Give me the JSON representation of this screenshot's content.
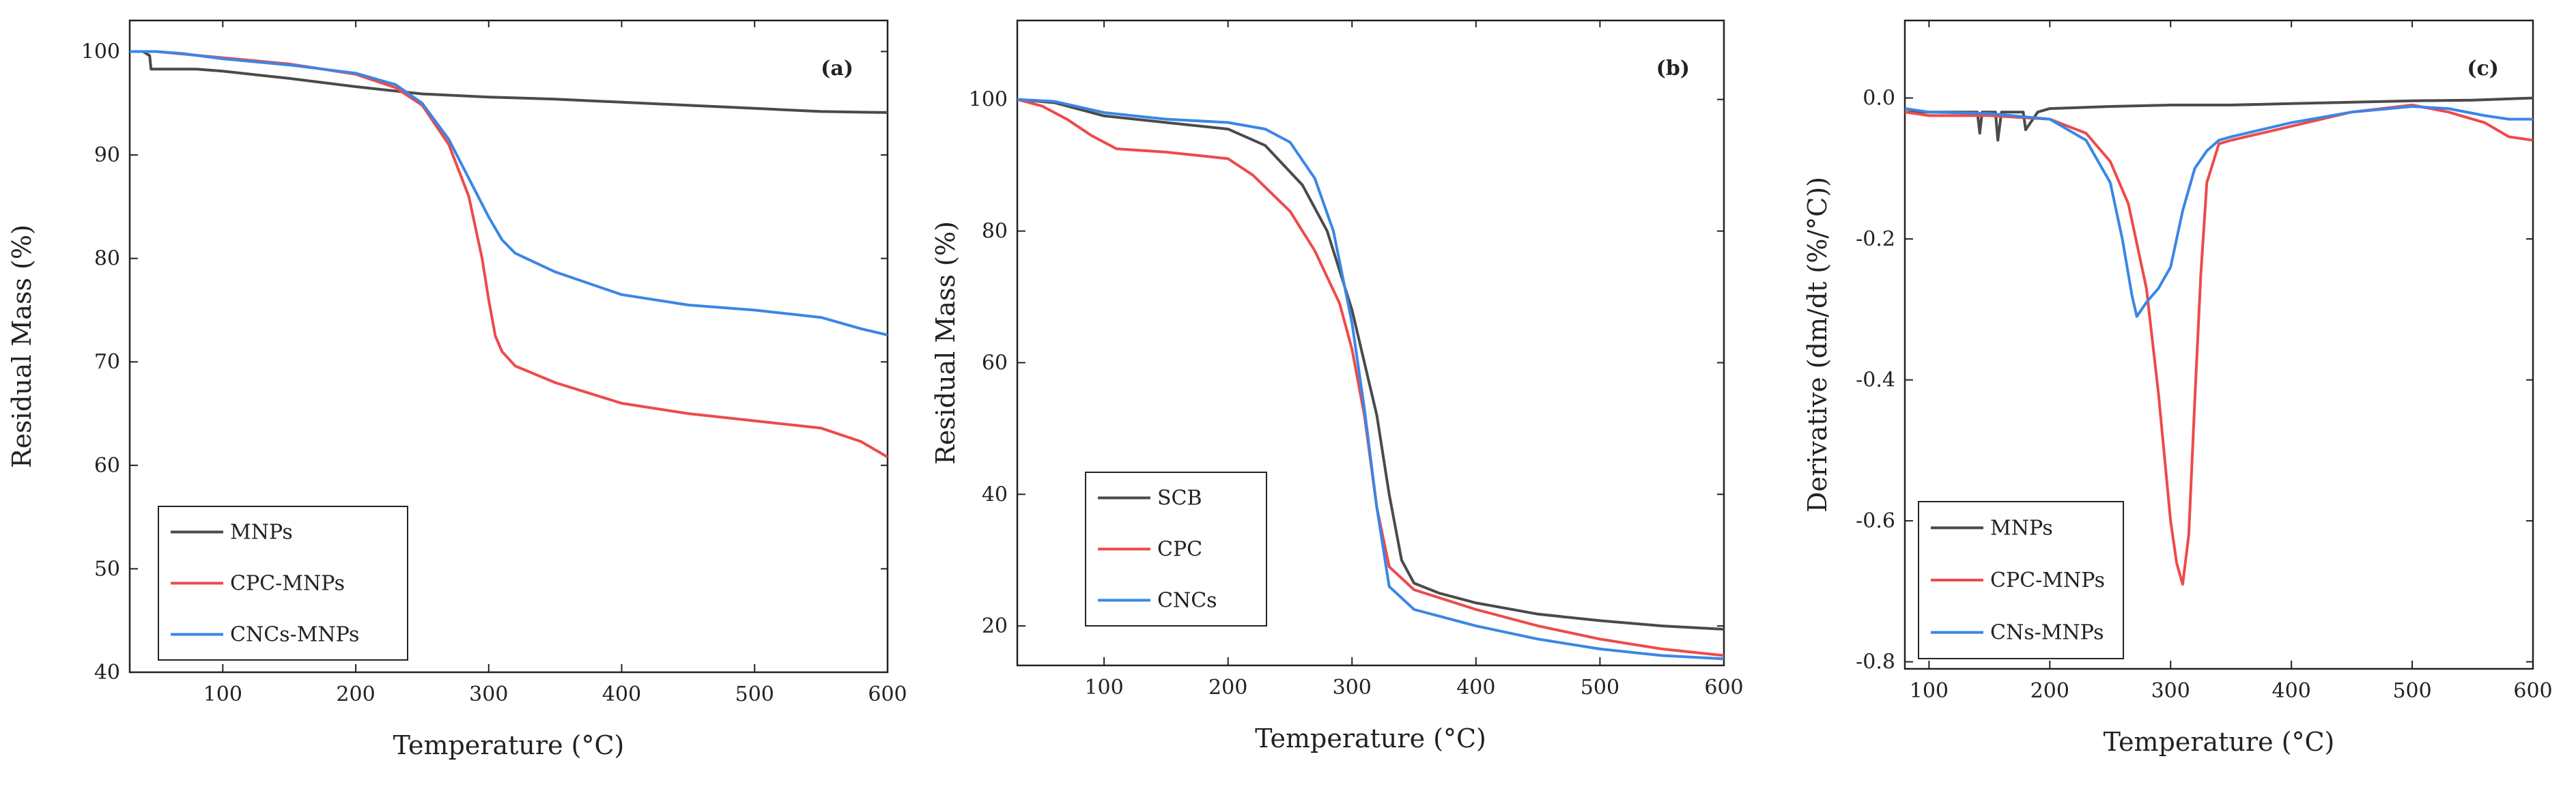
{
  "chart_data": [
    {
      "type": "line",
      "title": "(a)",
      "xlabel": "Temperature (°C)",
      "ylabel": "Residual Mass (%)",
      "xlim": [
        30,
        600
      ],
      "ylim": [
        40,
        103
      ],
      "xticks": [
        100,
        200,
        300,
        400,
        500,
        600
      ],
      "yticks": [
        40,
        50,
        60,
        70,
        80,
        90,
        100
      ],
      "legend_position": "bottom-left",
      "series": [
        {
          "name": "MNPs",
          "color": "#4a4a4a",
          "x": [
            30,
            40,
            45,
            46,
            80,
            100,
            150,
            200,
            250,
            300,
            350,
            400,
            450,
            500,
            550,
            600
          ],
          "y": [
            100,
            100,
            99.6,
            98.3,
            98.3,
            98.1,
            97.4,
            96.6,
            95.9,
            95.6,
            95.4,
            95.1,
            94.8,
            94.5,
            94.2,
            94.1
          ]
        },
        {
          "name": "CPC-MNPs",
          "color": "#ee4a4a",
          "x": [
            30,
            50,
            100,
            150,
            200,
            230,
            250,
            270,
            285,
            295,
            300,
            305,
            310,
            320,
            350,
            400,
            450,
            500,
            550,
            580,
            600
          ],
          "y": [
            100,
            100,
            99.4,
            98.8,
            97.8,
            96.5,
            94.8,
            91.0,
            86.0,
            80.0,
            76.0,
            72.5,
            71.0,
            69.6,
            68.0,
            66.0,
            65.0,
            64.3,
            63.6,
            62.3,
            60.8
          ]
        },
        {
          "name": "CNCs-MNPs",
          "color": "#3a86e6",
          "x": [
            30,
            50,
            70,
            100,
            150,
            200,
            230,
            250,
            270,
            290,
            300,
            310,
            320,
            350,
            400,
            450,
            500,
            550,
            580,
            600
          ],
          "y": [
            100,
            100,
            99.8,
            99.3,
            98.7,
            97.9,
            96.8,
            95.0,
            91.5,
            86.5,
            84.0,
            81.8,
            80.5,
            78.7,
            76.5,
            75.5,
            75.0,
            74.3,
            73.2,
            72.6
          ]
        }
      ]
    },
    {
      "type": "line",
      "title": "(b)",
      "xlabel": "Temperature (°C)",
      "ylabel": "Residual Mass (%)",
      "xlim": [
        30,
        600
      ],
      "ylim": [
        14,
        112
      ],
      "xticks": [
        100,
        200,
        300,
        400,
        500,
        600
      ],
      "yticks": [
        20,
        40,
        60,
        80,
        100
      ],
      "legend_position": "bottom-left",
      "series": [
        {
          "name": "SCB",
          "color": "#4a4a4a",
          "x": [
            30,
            60,
            100,
            150,
            200,
            230,
            260,
            280,
            300,
            320,
            330,
            340,
            350,
            370,
            400,
            450,
            500,
            550,
            600
          ],
          "y": [
            100,
            99.5,
            97.5,
            96.5,
            95.5,
            93.0,
            87.0,
            80.0,
            68.0,
            52.0,
            40.0,
            30.0,
            26.5,
            25.0,
            23.5,
            21.8,
            20.8,
            20.0,
            19.5
          ]
        },
        {
          "name": "CPC",
          "color": "#ee4a4a",
          "x": [
            30,
            50,
            70,
            90,
            110,
            150,
            200,
            220,
            250,
            270,
            290,
            300,
            310,
            320,
            330,
            350,
            400,
            450,
            500,
            550,
            600
          ],
          "y": [
            100,
            99.0,
            97.0,
            94.5,
            92.5,
            92.0,
            91.0,
            88.5,
            83.0,
            77.0,
            69.0,
            62.0,
            52.0,
            38.0,
            29.0,
            25.5,
            22.5,
            20.0,
            18.0,
            16.5,
            15.5
          ]
        },
        {
          "name": "CNCs",
          "color": "#3a86e6",
          "x": [
            30,
            60,
            100,
            150,
            200,
            230,
            250,
            270,
            285,
            300,
            310,
            320,
            330,
            350,
            400,
            450,
            500,
            550,
            600
          ],
          "y": [
            100,
            99.7,
            98.0,
            97.0,
            96.5,
            95.5,
            93.5,
            88.0,
            80.0,
            66.0,
            53.0,
            38.0,
            26.0,
            22.5,
            20.0,
            18.0,
            16.5,
            15.5,
            15.0
          ]
        }
      ]
    },
    {
      "type": "line",
      "title": "(c)",
      "xlabel": "Temperature (°C)",
      "ylabel": "Derivative (dm/dt (%/°C))",
      "xlim": [
        80,
        600
      ],
      "ylim": [
        -0.81,
        0.11
      ],
      "xticks": [
        100,
        200,
        300,
        400,
        500,
        600
      ],
      "yticks": [
        0.0,
        -0.2,
        -0.4,
        -0.6,
        -0.8
      ],
      "legend_position": "bottom-left",
      "series": [
        {
          "name": "MNPs",
          "color": "#4a4a4a",
          "x": [
            80,
            100,
            120,
            140,
            142,
            144,
            150,
            155,
            157,
            160,
            170,
            178,
            180,
            190,
            200,
            250,
            300,
            350,
            400,
            450,
            500,
            550,
            600
          ],
          "y": [
            -0.02,
            -0.02,
            -0.02,
            -0.02,
            -0.05,
            -0.02,
            -0.02,
            -0.02,
            -0.06,
            -0.02,
            -0.02,
            -0.02,
            -0.045,
            -0.02,
            -0.015,
            -0.012,
            -0.01,
            -0.01,
            -0.008,
            -0.006,
            -0.004,
            -0.003,
            0.0
          ]
        },
        {
          "name": "CPC-MNPs",
          "color": "#ee4a4a",
          "x": [
            80,
            100,
            150,
            200,
            230,
            250,
            265,
            280,
            290,
            300,
            305,
            310,
            315,
            320,
            325,
            330,
            340,
            350,
            400,
            450,
            500,
            530,
            560,
            580,
            600
          ],
          "y": [
            -0.02,
            -0.025,
            -0.025,
            -0.03,
            -0.05,
            -0.09,
            -0.15,
            -0.27,
            -0.42,
            -0.6,
            -0.66,
            -0.69,
            -0.62,
            -0.43,
            -0.25,
            -0.12,
            -0.065,
            -0.06,
            -0.04,
            -0.02,
            -0.01,
            -0.02,
            -0.035,
            -0.055,
            -0.06
          ]
        },
        {
          "name": "CNs-MNPs",
          "color": "#3a86e6",
          "x": [
            80,
            100,
            150,
            200,
            230,
            250,
            260,
            268,
            272,
            276,
            280,
            290,
            300,
            310,
            320,
            330,
            340,
            350,
            400,
            450,
            500,
            530,
            560,
            580,
            600
          ],
          "y": [
            -0.015,
            -0.02,
            -0.022,
            -0.03,
            -0.06,
            -0.12,
            -0.2,
            -0.28,
            -0.31,
            -0.3,
            -0.29,
            -0.27,
            -0.24,
            -0.16,
            -0.1,
            -0.075,
            -0.06,
            -0.055,
            -0.035,
            -0.02,
            -0.012,
            -0.015,
            -0.025,
            -0.03,
            -0.03
          ]
        }
      ]
    }
  ]
}
